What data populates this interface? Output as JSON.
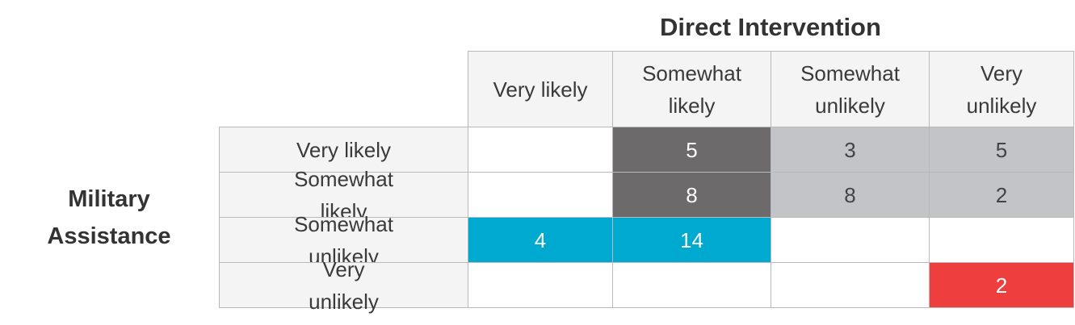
{
  "title": "Direct Intervention",
  "row_title": "Military Assistance",
  "table": {
    "columns": [
      "Very likely",
      "Somewhat likely",
      "Somewhat unlikely",
      "Very unlikely"
    ],
    "rows": [
      {
        "label": "Very likely",
        "cells": [
          null,
          {
            "value": 5,
            "color": "#6d6a6b"
          },
          {
            "value": 3,
            "color": "#c2c4c7"
          },
          {
            "value": 5,
            "color": "#c2c4c7"
          }
        ]
      },
      {
        "label": "Somewhat likely",
        "cells": [
          null,
          {
            "value": 8,
            "color": "#6d6a6b"
          },
          {
            "value": 8,
            "color": "#c2c4c7"
          },
          {
            "value": 2,
            "color": "#c2c4c7"
          }
        ]
      },
      {
        "label": "Somewhat unlikely",
        "cells": [
          {
            "value": 4,
            "color": "#00a9cf"
          },
          {
            "value": 14,
            "color": "#00a9cf"
          },
          null,
          null
        ]
      },
      {
        "label": "Very unlikely",
        "cells": [
          null,
          null,
          null,
          {
            "value": 2,
            "color": "#ef3e3e"
          }
        ]
      }
    ]
  }
}
